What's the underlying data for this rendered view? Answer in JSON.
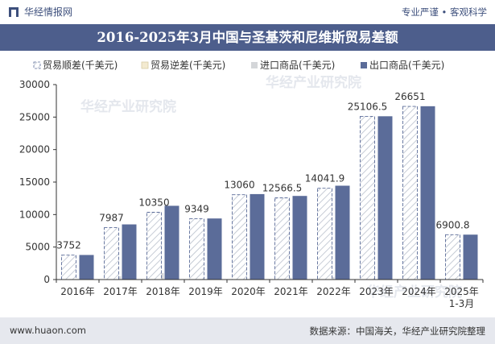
{
  "header": {
    "brand": "华经情报网",
    "tagline": "专业严谨 • 客观科学"
  },
  "title": "2016-2025年3月中国与圣基茨和尼维斯贸易差额",
  "footer": {
    "website": "www.huaon.com",
    "source": "数据来源：中国海关，华经产业研究院整理"
  },
  "watermark": "华经产业研究院",
  "colors": {
    "surplus": "#c8ced8",
    "deficit": "#d8cda6",
    "import": "#d4d6d9",
    "export": "#5b6c99",
    "titlebar": "#4d5e8c"
  },
  "chart_data": {
    "type": "bar",
    "categories": [
      "2016年",
      "2017年",
      "2018年",
      "2019年",
      "2020年",
      "2021年",
      "2022年",
      "2023年",
      "2024年",
      "2025年\n1-3月"
    ],
    "series": [
      {
        "name": "贸易顺差(千美元)",
        "values": [
          3752,
          7987,
          10350,
          9349,
          13060,
          12566.5,
          14041.9,
          25106.5,
          26651,
          6900.8
        ]
      },
      {
        "name": "贸易逆差(千美元)",
        "values": [
          0,
          0,
          0,
          0,
          0,
          0,
          0,
          0,
          0,
          0
        ]
      },
      {
        "name": "进口商品(千美元)",
        "values": [
          30,
          500,
          1000,
          50,
          90,
          300,
          400,
          20,
          20,
          10
        ]
      },
      {
        "name": "出口商品(千美元)",
        "values": [
          3782,
          8487,
          11350,
          9399,
          13150,
          12866.5,
          14441.9,
          25126.5,
          26671,
          6910.8
        ]
      }
    ],
    "labels": [
      "3752",
      "7987",
      "10350",
      "9349",
      "13060",
      "12566.5",
      "14041.9",
      "25106.5",
      "26651",
      "6900.8"
    ],
    "ylim": [
      0,
      30000
    ],
    "yticks": [
      0,
      5000,
      10000,
      15000,
      20000,
      25000,
      30000
    ],
    "legend_position": "top",
    "grid": false
  }
}
